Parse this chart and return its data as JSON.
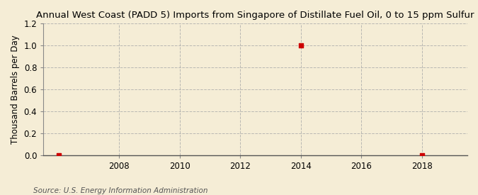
{
  "title": "Annual West Coast (PADD 5) Imports from Singapore of Distillate Fuel Oil, 0 to 15 ppm Sulfur",
  "ylabel": "Thousand Barrels per Day",
  "source": "Source: U.S. Energy Information Administration",
  "xlim": [
    2005.5,
    2019.5
  ],
  "ylim": [
    0.0,
    1.2
  ],
  "yticks": [
    0.0,
    0.2,
    0.4,
    0.6,
    0.8,
    1.0,
    1.2
  ],
  "xticks": [
    2008,
    2010,
    2012,
    2014,
    2016,
    2018
  ],
  "data_x": [
    2006,
    2014,
    2018
  ],
  "data_y": [
    0.0,
    1.0,
    0.0
  ],
  "marker_color": "#cc0000",
  "background_color": "#f5edd6",
  "grid_color": "#aaaaaa",
  "title_fontsize": 9.5,
  "axis_fontsize": 8.5,
  "tick_fontsize": 8.5,
  "source_fontsize": 7.5
}
